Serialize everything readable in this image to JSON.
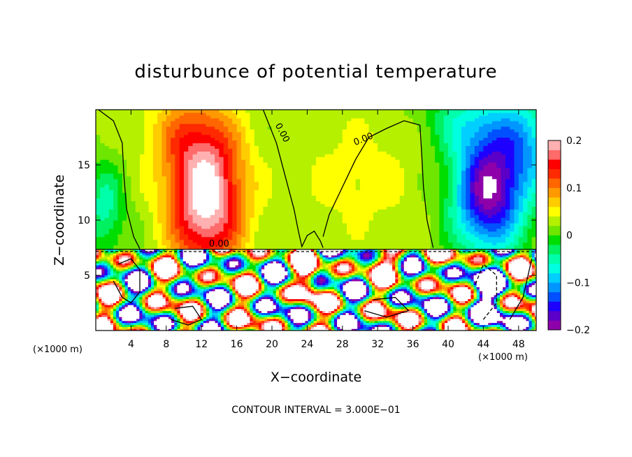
{
  "chart_data": {
    "type": "heatmap",
    "title": "disturbunce of potential temperature",
    "xlabel": "X−coordinate",
    "ylabel": "Z−coordinate",
    "x_unit_label": "(×1000 m)",
    "z_unit_label": "(×1000 m)",
    "footnote": "CONTOUR INTERVAL = 3.000E−01",
    "xlim": [
      0,
      50
    ],
    "ylim": [
      0,
      20
    ],
    "x_ticks": [
      4,
      8,
      12,
      16,
      20,
      24,
      28,
      32,
      36,
      40,
      44,
      48
    ],
    "x_tick_labels": [
      "4",
      "8",
      "12",
      "16",
      "20",
      "24",
      "28",
      "32",
      "36",
      "40",
      "44",
      "48"
    ],
    "y_ticks": [
      5,
      10,
      15
    ],
    "y_tick_labels": [
      "5",
      "10",
      "15"
    ],
    "contour_interval": 0.3,
    "contour_labels": [
      "0.00",
      "0.00",
      "0.00"
    ],
    "colorbar": {
      "range": [
        -0.2,
        0.2
      ],
      "tick_values": [
        0.2,
        0.1,
        0,
        -0.1,
        -0.2
      ],
      "tick_labels": [
        "0.2",
        "0.1",
        "0",
        "−0.1",
        "−0.2"
      ],
      "colors": [
        "#8e00aa",
        "#5a00c8",
        "#1e00ff",
        "#0050ff",
        "#0096ff",
        "#00cfff",
        "#00ffe0",
        "#00ffaa",
        "#00f060",
        "#00dd00",
        "#6ee600",
        "#b4f000",
        "#ffff00",
        "#ffcc00",
        "#ff9900",
        "#ff6600",
        "#ff2a00",
        "#ff0000",
        "#ff6a6a",
        "#ffb0b0"
      ]
    }
  }
}
